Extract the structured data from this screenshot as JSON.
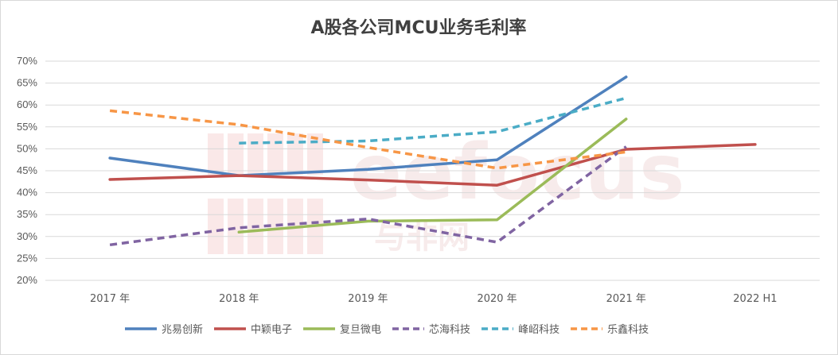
{
  "chart_data": {
    "type": "line",
    "title": "A股各公司MCU业务毛利率",
    "categories": [
      "2017 年",
      "2018 年",
      "2019 年",
      "2020 年",
      "2021 年",
      "2022 H1"
    ],
    "y_tick_labels": [
      "70%",
      "65%",
      "60%",
      "55%",
      "50%",
      "45%",
      "40%",
      "35%",
      "30%",
      "25%",
      "20%"
    ],
    "ylim": [
      20,
      70
    ],
    "y_unit": "%",
    "grid": true,
    "legend_position": "bottom",
    "watermark": "eefocus 与非网",
    "series": [
      {
        "name": "兆易创新",
        "color": "#4f81bd",
        "dash": false,
        "values": [
          47.9,
          43.9,
          45.3,
          47.5,
          66.4,
          null
        ]
      },
      {
        "name": "中颖电子",
        "color": "#c0504d",
        "dash": false,
        "values": [
          43.0,
          43.9,
          42.9,
          41.7,
          49.9,
          51.0
        ]
      },
      {
        "name": "复旦微电",
        "color": "#9bbb59",
        "dash": false,
        "values": [
          null,
          31.0,
          33.5,
          33.8,
          56.8,
          null
        ]
      },
      {
        "name": "芯海科技",
        "color": "#8064a2",
        "dash": true,
        "values": [
          28.1,
          32.0,
          34.0,
          28.7,
          50.5,
          null
        ]
      },
      {
        "name": "峰岹科技",
        "color": "#4bacc6",
        "dash": true,
        "values": [
          null,
          51.3,
          51.8,
          53.9,
          61.6,
          null
        ]
      },
      {
        "name": "乐鑫科技",
        "color": "#f79646",
        "dash": true,
        "values": [
          58.7,
          55.5,
          50.3,
          45.6,
          49.3,
          null
        ]
      }
    ]
  }
}
